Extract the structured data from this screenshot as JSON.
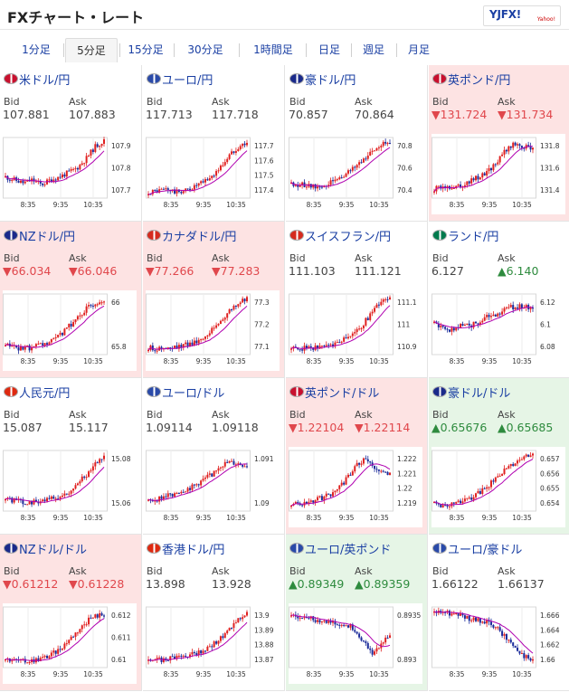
{
  "header": {
    "title": "FXチャート・レート",
    "logo_text": "YJFX!",
    "logo_sub": "Yahoo!"
  },
  "tabs": [
    {
      "label": "1分足",
      "active": false
    },
    {
      "label": "5分足",
      "active": true
    },
    {
      "label": "15分足",
      "active": false
    },
    {
      "label": "30分足",
      "active": false
    },
    {
      "label": "1時間足",
      "active": false
    },
    {
      "label": "日足",
      "active": false
    },
    {
      "label": "週足",
      "active": false
    },
    {
      "label": "月足",
      "active": false
    }
  ],
  "common": {
    "bid_label": "Bid",
    "ask_label": "Ask"
  },
  "colors": {
    "up_candle": "#e02020",
    "down_candle": "#1a2a9a",
    "ma_line": "#b000b0",
    "red_bg": "#fde3e3",
    "green_bg": "#e6f5e6",
    "link_blue": "#1a3fa3"
  },
  "pairs": [
    {
      "name": "米ドル/円",
      "icon": "us-flag-icon",
      "bid": "107.881",
      "ask": "107.883",
      "bid_dir": "",
      "ask_dir": "",
      "highlight": "none",
      "chart": {
        "yticks": [
          "107.9",
          "107.8",
          "107.7"
        ],
        "xticks": [
          "8:35",
          "9:35",
          "10:35"
        ],
        "trend": [
          0.35,
          0.3,
          0.25,
          0.3,
          0.22,
          0.3,
          0.35,
          0.42,
          0.5,
          0.65,
          0.85,
          0.95
        ]
      }
    },
    {
      "name": "ユーロ/円",
      "icon": "eu-flag-icon",
      "bid": "117.713",
      "ask": "117.718",
      "bid_dir": "",
      "ask_dir": "",
      "highlight": "none",
      "chart": {
        "yticks": [
          "117.7",
          "117.6",
          "117.5",
          "117.4"
        ],
        "xticks": [
          "8:35",
          "9:35",
          "10:35"
        ],
        "trend": [
          0.1,
          0.12,
          0.15,
          0.1,
          0.12,
          0.18,
          0.25,
          0.35,
          0.5,
          0.7,
          0.85,
          0.92
        ]
      }
    },
    {
      "name": "豪ドル/円",
      "icon": "au-flag-icon",
      "bid": "70.857",
      "ask": "70.864",
      "bid_dir": "",
      "ask_dir": "",
      "highlight": "none",
      "chart": {
        "yticks": [
          "70.8",
          "70.6",
          "70.4"
        ],
        "xticks": [
          "8:35",
          "9:35",
          "10:35"
        ],
        "trend": [
          0.25,
          0.22,
          0.2,
          0.18,
          0.22,
          0.3,
          0.38,
          0.5,
          0.65,
          0.78,
          0.9,
          0.95
        ]
      }
    },
    {
      "name": "英ポンド/円",
      "icon": "gb-flag-icon",
      "bid": "▼131.724",
      "ask": "▼131.734",
      "bid_dir": "down",
      "ask_dir": "down",
      "highlight": "red",
      "chart": {
        "yticks": [
          "131.8",
          "131.6",
          "131.4"
        ],
        "xticks": [
          "8:35",
          "9:35",
          "10:35"
        ],
        "trend": [
          0.15,
          0.18,
          0.2,
          0.22,
          0.28,
          0.35,
          0.45,
          0.6,
          0.8,
          0.9,
          0.85,
          0.82
        ]
      }
    },
    {
      "name": "NZドル/円",
      "icon": "nz-flag-icon",
      "bid": "▼66.034",
      "ask": "▼66.046",
      "bid_dir": "down",
      "ask_dir": "down",
      "highlight": "red",
      "chart": {
        "yticks": [
          "66",
          "65.8"
        ],
        "xticks": [
          "8:35",
          "9:35",
          "10:35"
        ],
        "trend": [
          0.15,
          0.12,
          0.1,
          0.12,
          0.15,
          0.2,
          0.3,
          0.45,
          0.6,
          0.75,
          0.85,
          0.9
        ]
      }
    },
    {
      "name": "カナダドル/円",
      "icon": "ca-flag-icon",
      "bid": "▼77.266",
      "ask": "▼77.283",
      "bid_dir": "down",
      "ask_dir": "down",
      "highlight": "red",
      "chart": {
        "yticks": [
          "77.3",
          "77.2",
          "77.1"
        ],
        "xticks": [
          "8:35",
          "9:35",
          "10:35"
        ],
        "trend": [
          0.12,
          0.1,
          0.1,
          0.12,
          0.15,
          0.2,
          0.28,
          0.4,
          0.55,
          0.72,
          0.85,
          0.92
        ]
      }
    },
    {
      "name": "スイスフラン/円",
      "icon": "ch-flag-icon",
      "bid": "111.103",
      "ask": "111.121",
      "bid_dir": "",
      "ask_dir": "",
      "highlight": "none",
      "chart": {
        "yticks": [
          "111.1",
          "111",
          "110.9"
        ],
        "xticks": [
          "8:35",
          "9:35",
          "10:35"
        ],
        "trend": [
          0.1,
          0.1,
          0.12,
          0.12,
          0.15,
          0.2,
          0.28,
          0.35,
          0.5,
          0.7,
          0.88,
          0.95
        ]
      }
    },
    {
      "name": "ランド/円",
      "icon": "za-flag-icon",
      "bid": "6.127",
      "ask": "▲6.140",
      "bid_dir": "",
      "ask_dir": "up",
      "highlight": "none",
      "chart": {
        "yticks": [
          "6.12",
          "6.1",
          "6.08"
        ],
        "xticks": [
          "8:35",
          "9:35",
          "10:35"
        ],
        "trend": [
          0.5,
          0.45,
          0.4,
          0.5,
          0.48,
          0.55,
          0.62,
          0.68,
          0.75,
          0.8,
          0.78,
          0.8
        ]
      }
    },
    {
      "name": "人民元/円",
      "icon": "cn-flag-icon",
      "bid": "15.087",
      "ask": "15.117",
      "bid_dir": "",
      "ask_dir": "",
      "highlight": "none",
      "chart": {
        "yticks": [
          "15.08",
          "15.06"
        ],
        "xticks": [
          "8:35",
          "9:35",
          "10:35"
        ],
        "trend": [
          0.2,
          0.18,
          0.15,
          0.15,
          0.18,
          0.2,
          0.22,
          0.3,
          0.45,
          0.6,
          0.8,
          0.9
        ]
      }
    },
    {
      "name": "ユーロ/ドル",
      "icon": "eu-flag-icon",
      "bid": "1.09114",
      "ask": "1.09118",
      "bid_dir": "",
      "ask_dir": "",
      "highlight": "none",
      "chart": {
        "yticks": [
          "1.091",
          "1.09"
        ],
        "xticks": [
          "8:35",
          "9:35",
          "10:35"
        ],
        "trend": [
          0.15,
          0.2,
          0.25,
          0.3,
          0.35,
          0.4,
          0.5,
          0.6,
          0.75,
          0.8,
          0.78,
          0.75
        ]
      }
    },
    {
      "name": "英ポンド/ドル",
      "icon": "gb-flag-icon",
      "bid": "▼1.22104",
      "ask": "▼1.22114",
      "bid_dir": "down",
      "ask_dir": "down",
      "highlight": "red",
      "chart": {
        "yticks": [
          "1.222",
          "1.221",
          "1.22",
          "1.219"
        ],
        "xticks": [
          "8:35",
          "9:35",
          "10:35"
        ],
        "trend": [
          0.1,
          0.12,
          0.15,
          0.2,
          0.25,
          0.35,
          0.5,
          0.7,
          0.85,
          0.75,
          0.65,
          0.6
        ]
      }
    },
    {
      "name": "豪ドル/ドル",
      "icon": "au-flag-icon",
      "bid": "▲0.65676",
      "ask": "▲0.65685",
      "bid_dir": "up",
      "ask_dir": "up",
      "highlight": "green",
      "chart": {
        "yticks": [
          "0.657",
          "0.656",
          "0.655",
          "0.654"
        ],
        "xticks": [
          "8:35",
          "9:35",
          "10:35"
        ],
        "trend": [
          0.12,
          0.1,
          0.12,
          0.15,
          0.2,
          0.3,
          0.42,
          0.55,
          0.7,
          0.8,
          0.88,
          0.95
        ]
      }
    },
    {
      "name": "NZドル/ドル",
      "icon": "nz-flag-icon",
      "bid": "▼0.61212",
      "ask": "▼0.61228",
      "bid_dir": "down",
      "ask_dir": "down",
      "highlight": "red",
      "chart": {
        "yticks": [
          "0.612",
          "0.611",
          "0.61"
        ],
        "xticks": [
          "8:35",
          "9:35",
          "10:35"
        ],
        "trend": [
          0.15,
          0.12,
          0.1,
          0.12,
          0.15,
          0.2,
          0.3,
          0.45,
          0.6,
          0.75,
          0.85,
          0.88
        ]
      }
    },
    {
      "name": "香港ドル/円",
      "icon": "hk-flag-icon",
      "bid": "13.898",
      "ask": "13.928",
      "bid_dir": "",
      "ask_dir": "",
      "highlight": "none",
      "chart": {
        "yticks": [
          "13.9",
          "13.89",
          "13.88",
          "13.87"
        ],
        "xticks": [
          "8:35",
          "9:35",
          "10:35"
        ],
        "trend": [
          0.1,
          0.12,
          0.15,
          0.18,
          0.2,
          0.22,
          0.28,
          0.35,
          0.48,
          0.62,
          0.78,
          0.9
        ]
      }
    },
    {
      "name": "ユーロ/英ポンド",
      "icon": "eu-flag-icon",
      "bid": "▲0.89349",
      "ask": "▲0.89359",
      "bid_dir": "up",
      "ask_dir": "up",
      "highlight": "green",
      "chart": {
        "yticks": [
          "0.8935",
          "0.893"
        ],
        "xticks": [
          "8:35",
          "9:35",
          "10:35"
        ],
        "trend": [
          0.88,
          0.85,
          0.82,
          0.78,
          0.75,
          0.72,
          0.7,
          0.65,
          0.45,
          0.2,
          0.35,
          0.55
        ]
      }
    },
    {
      "name": "ユーロ/豪ドル",
      "icon": "eu-flag-icon",
      "bid": "1.66122",
      "ask": "1.66137",
      "bid_dir": "",
      "ask_dir": "",
      "highlight": "none",
      "chart": {
        "yticks": [
          "1.666",
          "1.664",
          "1.662",
          "1.66"
        ],
        "xticks": [
          "8:35",
          "9:35",
          "10:35"
        ],
        "trend": [
          0.9,
          0.92,
          0.88,
          0.85,
          0.8,
          0.78,
          0.75,
          0.65,
          0.5,
          0.35,
          0.2,
          0.1
        ]
      }
    }
  ]
}
